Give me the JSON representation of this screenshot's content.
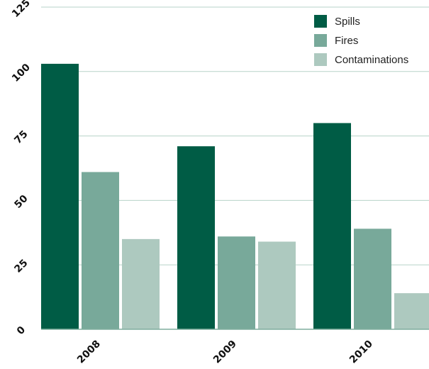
{
  "chart_data": {
    "type": "bar",
    "title": "",
    "xlabel": "",
    "ylabel": "",
    "categories": [
      "2008",
      "2009",
      "2010"
    ],
    "series": [
      {
        "name": "Spills",
        "values": [
          103,
          71,
          80
        ],
        "color": "#005c45"
      },
      {
        "name": "Fires",
        "values": [
          61,
          36,
          39
        ],
        "color": "#78a99a"
      },
      {
        "name": "Contaminations",
        "values": [
          35,
          34,
          14
        ],
        "color": "#adc9bf"
      }
    ],
    "ylim": [
      0,
      125
    ],
    "yticks": [
      "0",
      "25",
      "50",
      "75",
      "100",
      "125"
    ],
    "grid": true,
    "legend": "top-right"
  }
}
